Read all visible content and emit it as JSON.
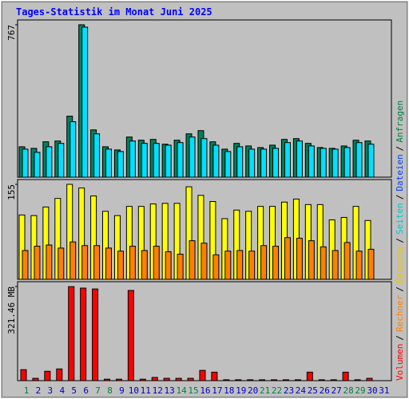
{
  "title": "Tages-Statistik im Monat Juni 2025",
  "categories": [
    "1",
    "2",
    "3",
    "4",
    "5",
    "6",
    "7",
    "8",
    "9",
    "10",
    "11",
    "12",
    "13",
    "14",
    "15",
    "16",
    "17",
    "18",
    "19",
    "20",
    "21",
    "22",
    "23",
    "24",
    "25",
    "26",
    "27",
    "28",
    "29",
    "30",
    "31"
  ],
  "category_colors": [
    "#008040",
    "#0000c0",
    "#0000c0",
    "#0000c0",
    "#0000c0",
    "#0000c0",
    "#008040",
    "#008040",
    "#0000c0",
    "#0000c0",
    "#0000c0",
    "#0000c0",
    "#0000c0",
    "#008040",
    "#008040",
    "#0000c0",
    "#0000c0",
    "#0000c0",
    "#0000c0",
    "#0000c0",
    "#008040",
    "#008040",
    "#0000c0",
    "#0000c0",
    "#0000c0",
    "#0000c0",
    "#0000c0",
    "#008040",
    "#008040",
    "#0000c0",
    "#0000c0"
  ],
  "legend": [
    {
      "name": "Volumen",
      "color": "#ff0000"
    },
    {
      "name": "Rechner",
      "color": "#ff8000"
    },
    {
      "name": "Besuche",
      "color": "#e8c800"
    },
    {
      "name": "Seiten",
      "color": "#00c8c8"
    },
    {
      "name": "Dateien",
      "color": "#0040ff"
    },
    {
      "name": "Anfragen",
      "color": "#008040"
    }
  ],
  "separator": "/",
  "chart_data": [
    {
      "type": "bar",
      "ylim": [
        0,
        767
      ],
      "yticks": [
        767
      ],
      "series": [
        {
          "color": "#00805c",
          "values": [
            153,
            145,
            178,
            182,
            307,
            767,
            238,
            153,
            137,
            202,
            186,
            190,
            166,
            186,
            218,
            234,
            178,
            141,
            170,
            157,
            149,
            161,
            190,
            194,
            170,
            149,
            145,
            157,
            186,
            182,
            null
          ]
        },
        {
          "color": "#00e0ff",
          "values": [
            141,
            125,
            153,
            170,
            279,
            755,
            218,
            141,
            129,
            182,
            170,
            170,
            161,
            174,
            202,
            194,
            161,
            129,
            153,
            141,
            141,
            145,
            174,
            182,
            157,
            145,
            141,
            149,
            174,
            166,
            null
          ]
        }
      ]
    },
    {
      "type": "bar",
      "ylim": [
        0,
        155
      ],
      "yticks": [
        155
      ],
      "series": [
        {
          "color": "#ffff00",
          "values": [
            105,
            104,
            118,
            132,
            155,
            149,
            136,
            111,
            104,
            119,
            119,
            123,
            124,
            124,
            151,
            137,
            127,
            99,
            113,
            111,
            119,
            119,
            126,
            131,
            122,
            122,
            97,
            101,
            119,
            96,
            null
          ]
        },
        {
          "color": "#ff8000",
          "values": [
            47,
            54,
            56,
            51,
            61,
            55,
            55,
            51,
            46,
            54,
            47,
            54,
            45,
            41,
            63,
            59,
            40,
            46,
            47,
            46,
            55,
            54,
            68,
            67,
            63,
            53,
            47,
            60,
            46,
            49,
            null
          ]
        }
      ]
    },
    {
      "type": "bar",
      "ylim": [
        0,
        321.46
      ],
      "yticks": [
        {
          "value": 321.46,
          "label": "321.46 MB"
        }
      ],
      "series": [
        {
          "color": "#ff0000",
          "values": [
            37.5,
            8,
            32,
            40,
            321,
            316,
            313,
            5,
            5,
            308,
            5,
            11,
            8,
            8,
            8,
            35,
            29,
            3,
            3,
            3,
            3,
            3,
            3,
            3,
            29,
            3,
            3,
            29,
            3,
            8,
            null
          ]
        }
      ]
    }
  ]
}
